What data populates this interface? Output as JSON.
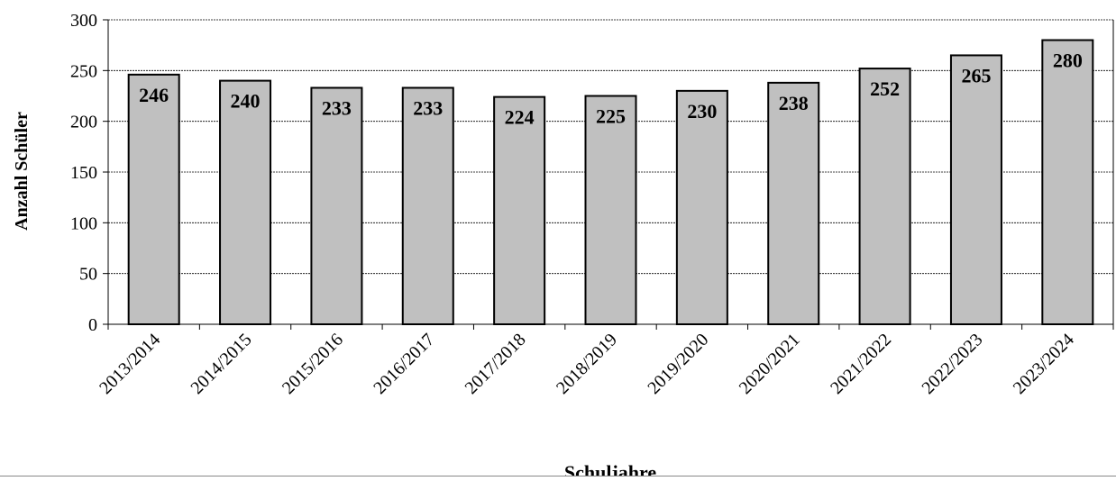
{
  "chart_data": {
    "type": "bar",
    "y_label": "Anzahl Schüler",
    "x_label": "Schuljahre",
    "categories": [
      "2013/2014",
      "2014/2015",
      "2015/2016",
      "2016/2017",
      "2017/2018",
      "2018/2019",
      "2019/2020",
      "2020/2021",
      "2021/2022",
      "2022/2023",
      "2023/2024"
    ],
    "values": [
      246,
      240,
      233,
      233,
      224,
      225,
      230,
      238,
      252,
      265,
      280
    ],
    "color": "#c0c0c0",
    "ylim": [
      0,
      300
    ],
    "yticks": [
      0,
      50,
      100,
      150,
      200,
      250,
      300
    ],
    "grid": true
  }
}
